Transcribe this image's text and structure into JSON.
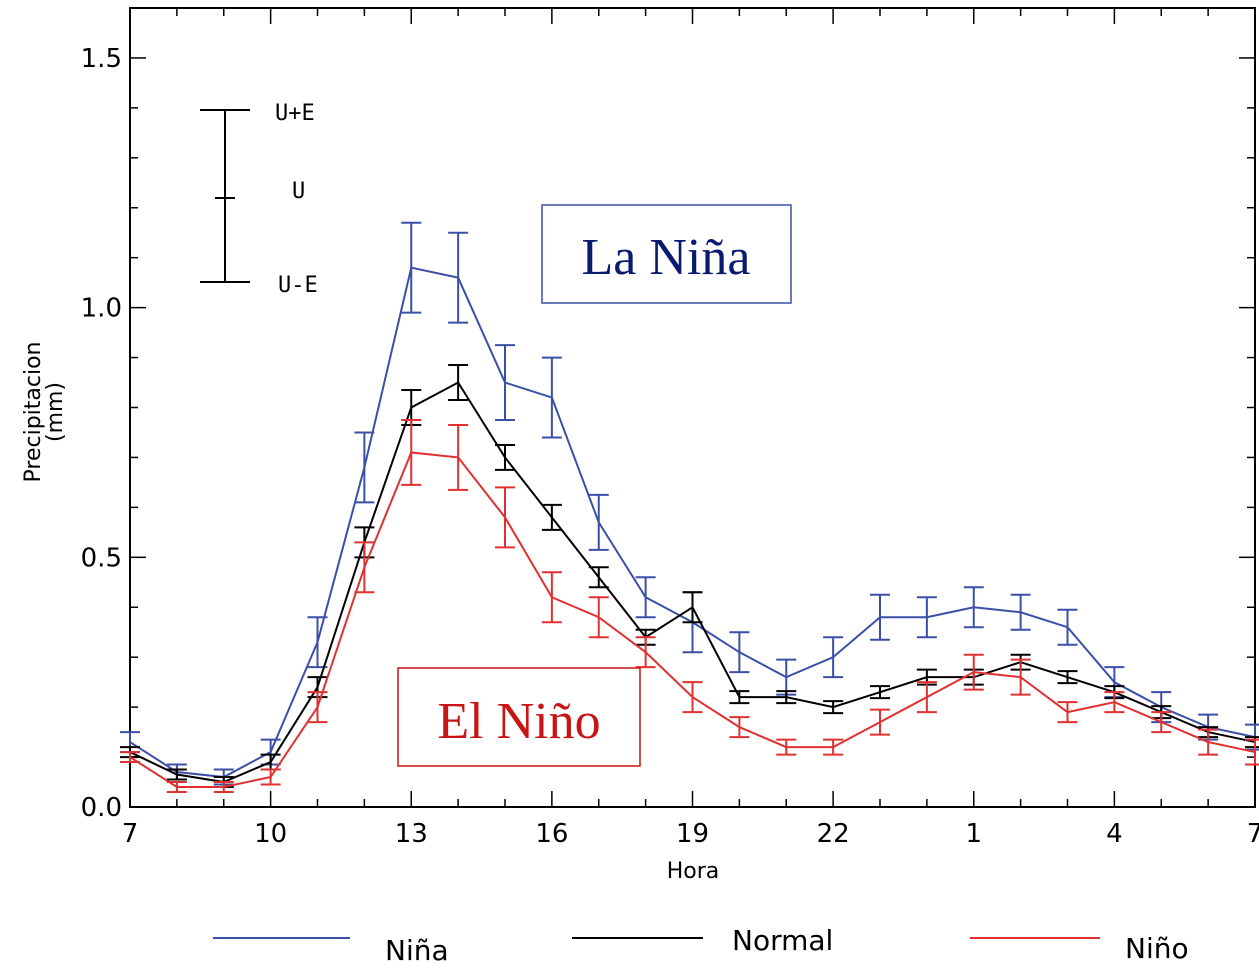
{
  "chart_data": {
    "type": "line",
    "xlabel": "Hora",
    "ylabel": "Precipitacion\n(mm)",
    "ylim": [
      0,
      1.6
    ],
    "y_ticks": [
      "0.0",
      "0.5",
      "1.0",
      "1.5"
    ],
    "x_tick_labels": [
      "7",
      "10",
      "13",
      "16",
      "19",
      "22",
      "1",
      "4",
      "7"
    ],
    "categories": [
      "7",
      "8",
      "9",
      "10",
      "11",
      "12",
      "13",
      "14",
      "15",
      "16",
      "17",
      "18",
      "19",
      "20",
      "21",
      "22",
      "23",
      "0",
      "1",
      "2",
      "3",
      "4",
      "5",
      "6",
      "7"
    ],
    "grid": false,
    "legend_position": "bottom",
    "series": [
      {
        "name": "Niña",
        "color": "#3b4fa8",
        "values": [
          0.13,
          0.07,
          0.06,
          0.11,
          0.33,
          0.68,
          1.08,
          1.06,
          0.85,
          0.82,
          0.57,
          0.42,
          0.37,
          0.31,
          0.26,
          0.3,
          0.38,
          0.38,
          0.4,
          0.39,
          0.36,
          0.25,
          0.2,
          0.16,
          0.14
        ],
        "errors": [
          0.02,
          0.015,
          0.015,
          0.025,
          0.05,
          0.07,
          0.09,
          0.09,
          0.075,
          0.08,
          0.055,
          0.04,
          0.06,
          0.04,
          0.035,
          0.04,
          0.045,
          0.04,
          0.04,
          0.035,
          0.035,
          0.03,
          0.03,
          0.025,
          0.025
        ]
      },
      {
        "name": "Normal",
        "color": "#000000",
        "values": [
          0.11,
          0.065,
          0.05,
          0.09,
          0.24,
          0.53,
          0.8,
          0.85,
          0.7,
          0.58,
          0.46,
          0.34,
          0.4,
          0.22,
          0.22,
          0.2,
          0.23,
          0.26,
          0.26,
          0.29,
          0.26,
          0.23,
          0.19,
          0.15,
          0.13
        ],
        "errors": [
          0.01,
          0.01,
          0.01,
          0.015,
          0.02,
          0.03,
          0.035,
          0.035,
          0.025,
          0.025,
          0.02,
          0.015,
          0.03,
          0.012,
          0.012,
          0.012,
          0.012,
          0.015,
          0.015,
          0.015,
          0.012,
          0.012,
          0.012,
          0.01,
          0.01
        ]
      },
      {
        "name": "Niño",
        "color": "#e03030",
        "values": [
          0.1,
          0.04,
          0.04,
          0.06,
          0.2,
          0.48,
          0.71,
          0.7,
          0.58,
          0.42,
          0.38,
          0.31,
          0.22,
          0.16,
          0.12,
          0.12,
          0.17,
          0.22,
          0.27,
          0.26,
          0.19,
          0.21,
          0.17,
          0.13,
          0.11
        ],
        "errors": [
          0.01,
          0.01,
          0.01,
          0.015,
          0.03,
          0.05,
          0.065,
          0.065,
          0.06,
          0.05,
          0.04,
          0.03,
          0.03,
          0.02,
          0.015,
          0.015,
          0.025,
          0.03,
          0.035,
          0.035,
          0.02,
          0.02,
          0.02,
          0.025,
          0.025
        ]
      }
    ],
    "errorbar_key": {
      "top_label": "U+E",
      "mid_label": "U",
      "bottom_label": "U-E"
    },
    "annotations": [
      {
        "text": "La Niña",
        "color": "#0a1a6e",
        "border": "#3b4fa8"
      },
      {
        "text": "El Niño",
        "color": "#c81414",
        "border": "#c81414"
      }
    ]
  }
}
